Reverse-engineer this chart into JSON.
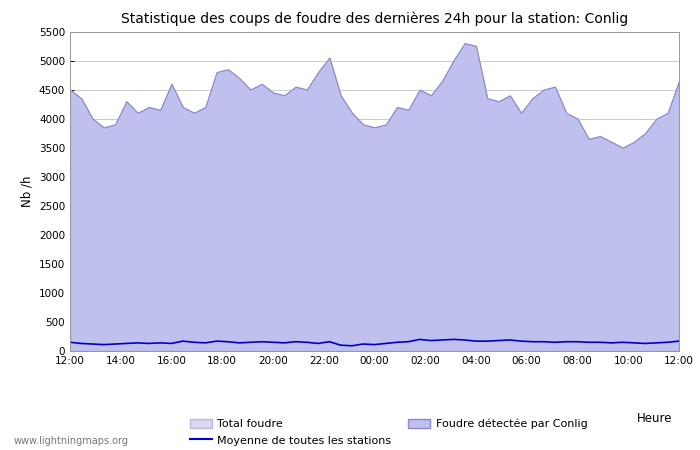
{
  "title": "Statistique des coups de foudre des dernières 24h pour la station: Conlig",
  "ylabel": "Nb /h",
  "xlabel": "Heure",
  "watermark": "www.lightningmaps.org",
  "ylim": [
    0,
    5500
  ],
  "yticks": [
    0,
    500,
    1000,
    1500,
    2000,
    2500,
    3000,
    3500,
    4000,
    4500,
    5000,
    5500
  ],
  "xtick_labels": [
    "12:00",
    "14:00",
    "16:00",
    "18:00",
    "20:00",
    "22:00",
    "00:00",
    "02:00",
    "04:00",
    "06:00",
    "08:00",
    "10:00",
    "12:00"
  ],
  "bg_color": "#ffffff",
  "plot_bg_color": "#ffffff",
  "grid_color": "#cccccc",
  "fill_total_color": "#d8d8f0",
  "fill_total_edge_color": "#b8b8e0",
  "fill_detected_color": "#c0c0ee",
  "fill_detected_edge_color": "#8888cc",
  "mean_line_color": "#0000cc",
  "legend_total_label": "Total foudre",
  "legend_detected_label": "Foudre détectée par Conlig",
  "legend_mean_label": "Moyenne de toutes les stations",
  "total_foudre": [
    4500,
    4350,
    4000,
    3850,
    3900,
    4300,
    4100,
    4200,
    4150,
    4600,
    4200,
    4100,
    4200,
    4800,
    4850,
    4700,
    4500,
    4600,
    4450,
    4400,
    4550,
    4500,
    4800,
    5050,
    4400,
    4100,
    3900,
    3850,
    3900,
    4200,
    4150,
    4500,
    4400,
    4650,
    5000,
    5300,
    5250,
    4350,
    4300,
    4400,
    4100,
    4350,
    4500,
    4550,
    4100,
    4000,
    3650,
    3700,
    3600,
    3500,
    3600,
    3750,
    4000,
    4100,
    4650
  ],
  "foudre_detected": [
    4500,
    4350,
    4000,
    3850,
    3900,
    4300,
    4100,
    4200,
    4150,
    4600,
    4200,
    4100,
    4200,
    4800,
    4850,
    4700,
    4500,
    4600,
    4450,
    4400,
    4550,
    4500,
    4800,
    5050,
    4400,
    4100,
    3900,
    3850,
    3900,
    4200,
    4150,
    4500,
    4400,
    4650,
    5000,
    5300,
    5250,
    4350,
    4300,
    4400,
    4100,
    4350,
    4500,
    4550,
    4100,
    4000,
    3650,
    3700,
    3600,
    3500,
    3600,
    3750,
    4000,
    4100,
    4650
  ],
  "mean_line": [
    150,
    130,
    120,
    110,
    120,
    130,
    140,
    130,
    140,
    130,
    170,
    150,
    140,
    170,
    160,
    140,
    150,
    160,
    150,
    140,
    160,
    150,
    130,
    160,
    100,
    90,
    120,
    110,
    130,
    150,
    160,
    200,
    180,
    190,
    200,
    190,
    170,
    170,
    180,
    190,
    170,
    160,
    160,
    150,
    160,
    160,
    150,
    150,
    140,
    150,
    140,
    130,
    140,
    150,
    170
  ]
}
